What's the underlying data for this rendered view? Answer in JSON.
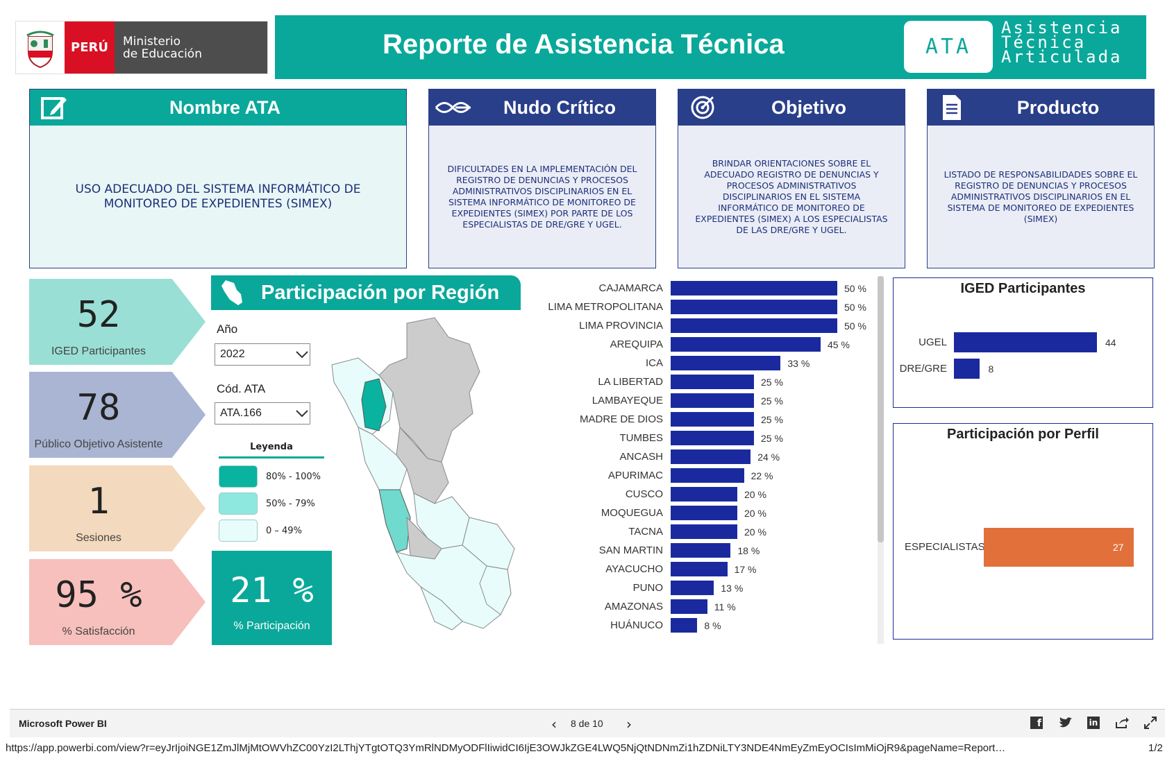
{
  "header": {
    "logo_peru": "PERÚ",
    "logo_ministry_line1": "Ministerio",
    "logo_ministry_line2": "de Educación",
    "title": "Reporte de Asistencia Técnica",
    "badge": "ATA",
    "badge_text": [
      "Asistencia",
      "Técnica",
      "Articulada"
    ]
  },
  "cards": [
    {
      "title": "Nombre ATA",
      "icon": "edit-icon",
      "text": "USO ADECUADO DEL SISTEMA INFORMÁTICO DE MONITOREO DE EXPEDIENTES (SIMEX)",
      "head_color": "#0aa89a",
      "body_color": "#e8f6f5"
    },
    {
      "title": "Nudo Crítico",
      "icon": "knot-icon",
      "text": "DIFICULTADES EN LA IMPLEMENTACIÓN DEL REGISTRO DE DENUNCIAS Y PROCESOS ADMINISTRATIVOS DISCIPLINARIOS EN EL SISTEMA INFORMÁTICO DE MONITOREO DE EXPEDIENTES (SIMEX) POR PARTE DE LOS ESPECIALISTAS DE DRE/GRE Y UGEL.",
      "head_color": "#2a3f8a",
      "body_color": "#eaedf5"
    },
    {
      "title": "Objetivo",
      "icon": "target-icon",
      "text": "BRINDAR ORIENTACIONES SOBRE EL ADECUADO REGISTRO DE DENUNCIAS Y PROCESOS ADMINISTRATIVOS DISCIPLINARIOS EN EL SISTEMA INFORMÁTICO DE MONITOREO DE EXPEDIENTES (SIMEX) A LOS ESPECIALISTAS DE LAS DRE/GRE Y UGEL.",
      "head_color": "#2a3f8a",
      "body_color": "#eaedf5"
    },
    {
      "title": "Producto",
      "icon": "document-icon",
      "text": "LISTADO DE RESPONSABILIDADES SOBRE EL REGISTRO DE DENUNCIAS Y PROCESOS ADMINISTRATIVOS DISCIPLINARIOS EN EL SISTEMA DE MONITOREO DE EXPEDIENTES (SIMEX)",
      "head_color": "#2a3f8a",
      "body_color": "#eaedf5"
    }
  ],
  "kpis": [
    {
      "value": "52",
      "label": "IGED Participantes",
      "color": "#9adfd6"
    },
    {
      "value": "78",
      "label": "Público Objetivo Asistente",
      "color": "#a9b5d3"
    },
    {
      "value": "1",
      "label": "Sesiones",
      "color": "#f3d9bd"
    },
    {
      "value": "95 %",
      "label": "% Satisfacción",
      "color": "#f7c0bc"
    }
  ],
  "region": {
    "title": "Participación por Región",
    "year_label": "Año",
    "year_value": "2022",
    "code_label": "Cód. ATA",
    "code_value": "ATA.166",
    "legend_title": "Leyenda",
    "legend": [
      {
        "label": "80% - 100%",
        "color": "#0ab3a0"
      },
      {
        "label": "50% - 79%",
        "color": "#8ee8df"
      },
      {
        "label": "0 – 49%",
        "color": "#e8fdfb"
      }
    ],
    "pct_value": "21 %",
    "pct_label": "% Participación"
  },
  "chart_data": [
    {
      "type": "bar",
      "orientation": "horizontal",
      "categories": [
        "CAJAMARCA",
        "LIMA METROPOLITANA",
        "LIMA PROVINCIA",
        "AREQUIPA",
        "ICA",
        "LA LIBERTAD",
        "LAMBAYEQUE",
        "MADRE DE DIOS",
        "TUMBES",
        "ANCASH",
        "APURIMAC",
        "CUSCO",
        "MOQUEGUA",
        "TACNA",
        "SAN MARTIN",
        "AYACUCHO",
        "PUNO",
        "AMAZONAS",
        "HUÁNUCO"
      ],
      "values": [
        50,
        50,
        50,
        45,
        33,
        25,
        25,
        25,
        25,
        24,
        22,
        20,
        20,
        20,
        18,
        17,
        13,
        11,
        8
      ],
      "value_labels": [
        "50 %",
        "50 %",
        "50 %",
        "45 %",
        "33 %",
        "25 %",
        "25 %",
        "25 %",
        "25 %",
        "24 %",
        "22 %",
        "20 %",
        "20 %",
        "20 %",
        "18 %",
        "17 %",
        "13 %",
        "11 %",
        "8 %"
      ],
      "color": "#1a2a9e"
    },
    {
      "type": "bar",
      "orientation": "horizontal",
      "title": "IGED Participantes",
      "categories": [
        "UGEL",
        "DRE/GRE"
      ],
      "values": [
        44,
        8
      ],
      "color": "#1a2a9e"
    },
    {
      "type": "bar",
      "orientation": "horizontal",
      "title": "Participación por Perfil",
      "categories": [
        "ESPECIALISTAS"
      ],
      "values": [
        27
      ],
      "color": "#e2703a"
    }
  ],
  "footer": {
    "brand": "Microsoft Power BI",
    "page": "8 de 10",
    "url": "https://app.powerbi.com/view?r=eyJrIjoiNGE1ZmJlMjMtOWVhZC00YzI2LThjYTgtOTQ3YmRlNDMyODFlIiwidCI6IjE3OWJkZGE4LWQ5NjQtNDNmZi1hZDNiLTY3NDE4NmEyZmEyOCIsImMiOjR9&pageName=Report…",
    "url_page": "1/2"
  }
}
